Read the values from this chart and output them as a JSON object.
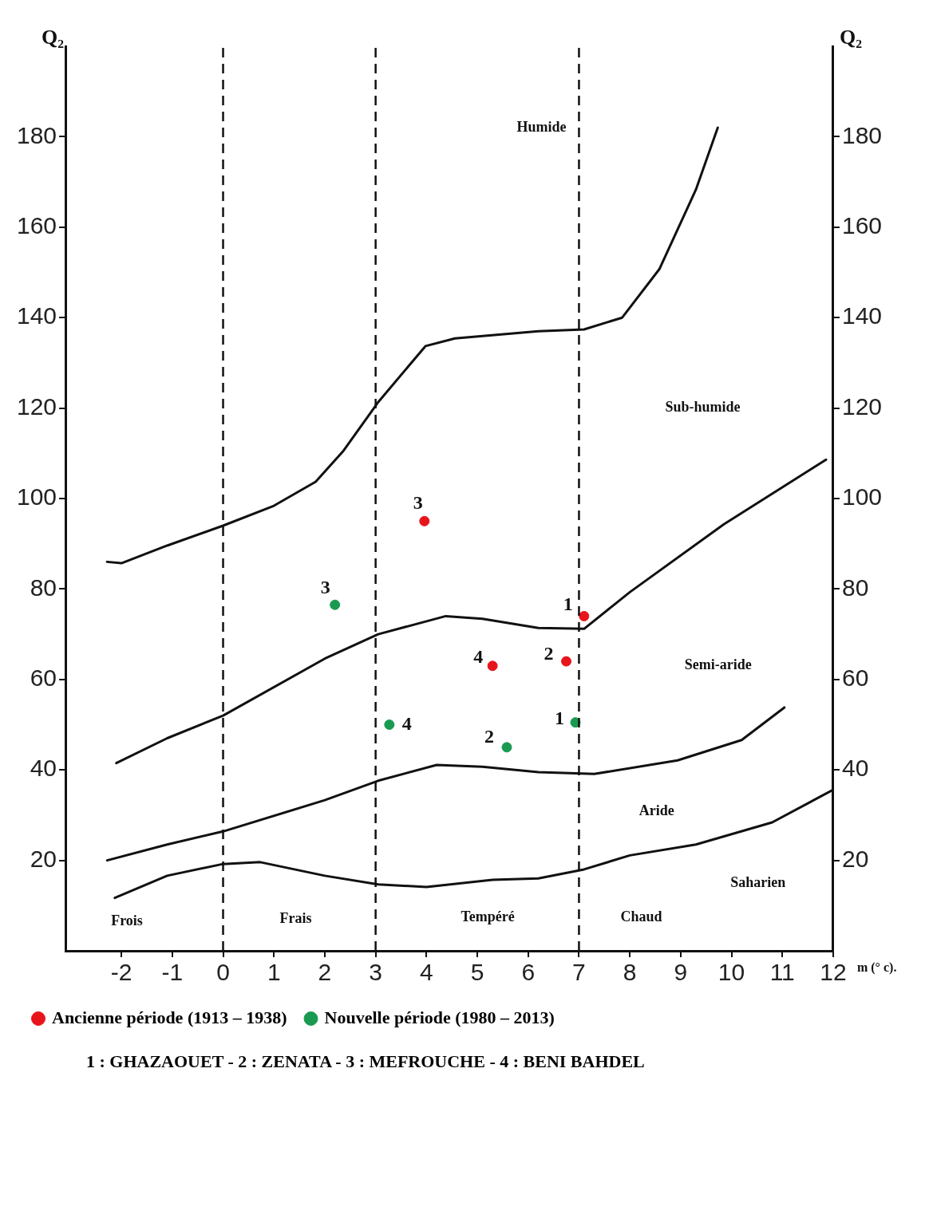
{
  "chart_data": {
    "type": "scatter",
    "xlabel": "m (° c).",
    "ylabel": "Q₂",
    "y2label": "Q₂",
    "xlim": [
      -3.1,
      12
    ],
    "xticks": [
      -2,
      -1,
      0,
      1,
      2,
      3,
      4,
      5,
      6,
      7,
      8,
      9,
      10,
      11,
      12
    ],
    "ylim": [
      0,
      200
    ],
    "yticks": [
      20,
      40,
      60,
      80,
      100,
      120,
      140,
      160,
      180
    ],
    "y2lim": [
      0,
      200
    ],
    "y2ticks": [
      20,
      40,
      60,
      80,
      100,
      120,
      140,
      160,
      180
    ],
    "grid": false,
    "legend": "bottom",
    "marker": "circle",
    "series": [
      {
        "name": "Ancienne période (1913 – 1938)",
        "color": "#e8141b",
        "x": [
          7.1,
          6.75,
          3.96,
          5.3
        ],
        "values": [
          74,
          64,
          95,
          63
        ]
      },
      {
        "name": "Nouvelle période (1980 – 2013)",
        "color": "#1a9a50",
        "x": [
          6.93,
          5.58,
          2.2,
          3.27
        ],
        "values": [
          50.5,
          45,
          76.5,
          50
        ]
      },
      {
        "type": "line",
        "color": "#111111",
        "marker": "none",
        "x": [
          -2.28,
          -2.0,
          -1.1,
          0,
          1,
          1.82,
          2.37,
          3.05,
          3.98,
          4.56,
          6.2,
          7.1,
          7.85,
          8.58,
          9.3,
          9.73
        ],
        "values": [
          86,
          85.7,
          89.6,
          94,
          98.4,
          103.7,
          110.6,
          121.3,
          133.7,
          135.4,
          137,
          137.4,
          140,
          150.7,
          168.3,
          182
        ]
      },
      {
        "type": "line",
        "color": "#111111",
        "marker": "none",
        "x": [
          -2.1,
          -1.1,
          0,
          2,
          3.05,
          4.38,
          5.1,
          6.2,
          7.1,
          8.0,
          9.85,
          11.86
        ],
        "values": [
          41.5,
          47,
          52,
          64.6,
          70,
          74,
          73.4,
          71.4,
          71.2,
          79.3,
          94.3,
          108.6
        ]
      },
      {
        "type": "line",
        "color": "#111111",
        "marker": "none",
        "x": [
          -2.28,
          -1.1,
          0,
          2,
          3.05,
          4.2,
          5.1,
          6.2,
          7.3,
          8.94,
          10.2,
          11.04
        ],
        "values": [
          20,
          23.5,
          26.4,
          33.3,
          37.6,
          41.1,
          40.7,
          39.5,
          39.1,
          42.1,
          46.6,
          53.8
        ]
      },
      {
        "type": "line",
        "color": "#111111",
        "marker": "none",
        "x": [
          -2.13,
          -1.1,
          0,
          0.73,
          2,
          3.05,
          4.0,
          5.3,
          6.2,
          7.1,
          8,
          9.3,
          10.8,
          12
        ],
        "values": [
          11.7,
          16.6,
          19.2,
          19.6,
          16.6,
          14.7,
          14.1,
          15.7,
          16,
          18,
          21.1,
          23.5,
          28.4,
          35.6
        ]
      }
    ],
    "ref_lines": [
      {
        "axis": "x",
        "value": 0,
        "line_style": "dashed"
      },
      {
        "axis": "x",
        "value": 3,
        "line_style": "dashed"
      },
      {
        "axis": "x",
        "value": 7,
        "line_style": "dashed"
      }
    ],
    "annotations": [
      {
        "text": "1",
        "x": 7.1,
        "y": 74
      },
      {
        "text": "2",
        "x": 6.75,
        "y": 64
      },
      {
        "text": "3",
        "x": 3.96,
        "y": 95
      },
      {
        "text": "4",
        "x": 5.3,
        "y": 63
      },
      {
        "text": "1",
        "x": 6.93,
        "y": 50.5
      },
      {
        "text": "2",
        "x": 5.58,
        "y": 45
      },
      {
        "text": "3",
        "x": 2.2,
        "y": 76.5
      },
      {
        "text": "4",
        "x": 3.27,
        "y": 50
      },
      "Humide",
      "Sub-humide",
      "Semi-aride",
      "Aride",
      "Saharien",
      "Frois",
      "Frais",
      "Tempéré",
      "Chaud",
      "1 : GHAZAOUET - 2 : ZENATA - 3 : MEFROUCHE - 4 : BENI BAHDEL"
    ]
  }
}
